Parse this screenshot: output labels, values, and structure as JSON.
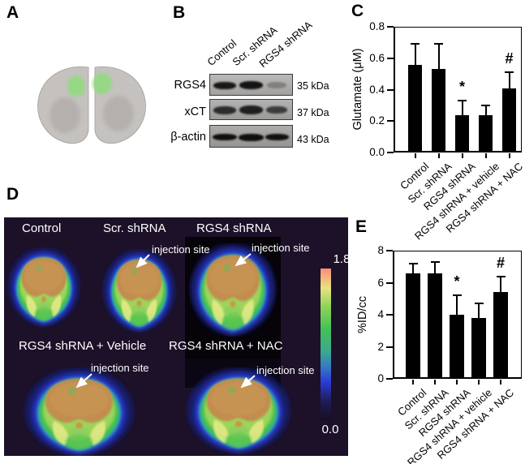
{
  "figure": {
    "panel_a": {
      "label": "A"
    },
    "panel_b": {
      "label": "B",
      "lane_labels": [
        "Control",
        "Scr. shRNA",
        "RGS4 shRNA"
      ],
      "rows": [
        {
          "protein": "RGS4",
          "weight": "35 kDa"
        },
        {
          "protein": "xCT",
          "weight": "37 kDa"
        },
        {
          "protein": "β-actin",
          "weight": "43 kDa"
        }
      ]
    },
    "panel_c": {
      "label": "C"
    },
    "panel_d": {
      "label": "D",
      "image_labels_top": [
        "Control",
        "Scr. shRNA",
        "RGS4 shRNA"
      ],
      "image_labels_bottom": [
        "RGS4 shRNA + Vehicle",
        "RGS4 shRNA + NAC"
      ],
      "injection_site_label": "injection site",
      "colorbar": {
        "max": "1.8",
        "min": "0.0"
      },
      "background_color": "#1c1129"
    },
    "panel_e": {
      "label": "E"
    }
  },
  "chart_data": [
    {
      "type": "bar",
      "panel": "C",
      "ylabel": "Glutamate (μM)",
      "categories": [
        "Control",
        "Scr. shRNA",
        "RGS4 shRNA",
        "RGS4 shRNA + vehicle",
        "RGS4 shRNA + NAC"
      ],
      "values": [
        0.56,
        0.53,
        0.24,
        0.24,
        0.41
      ],
      "errors": [
        0.13,
        0.16,
        0.09,
        0.06,
        0.1
      ],
      "ylim": [
        0,
        0.8
      ],
      "yticks": [
        "0.0",
        "0.2",
        "0.4",
        "0.6",
        "0.8"
      ],
      "annotations": [
        {
          "bar": 2,
          "symbol": "*"
        },
        {
          "bar": 4,
          "symbol": "#"
        }
      ],
      "bar_color": "#000000",
      "grid": false,
      "legend": null
    },
    {
      "type": "bar",
      "panel": "E",
      "ylabel": "%ID/cc",
      "categories": [
        "Control",
        "Scr. shRNA",
        "RGS4 shRNA",
        "RGS4 shRNA + vehicle",
        "RGS4 shRNA + NAC"
      ],
      "values": [
        6.6,
        6.6,
        4.0,
        3.8,
        5.4
      ],
      "errors": [
        0.6,
        0.7,
        1.2,
        0.9,
        1.0
      ],
      "ylim": [
        0,
        8
      ],
      "yticks": [
        "0",
        "2",
        "4",
        "6",
        "8"
      ],
      "annotations": [
        {
          "bar": 2,
          "symbol": "*"
        },
        {
          "bar": 4,
          "symbol": "#"
        }
      ],
      "bar_color": "#000000",
      "grid": false,
      "legend": null
    }
  ]
}
